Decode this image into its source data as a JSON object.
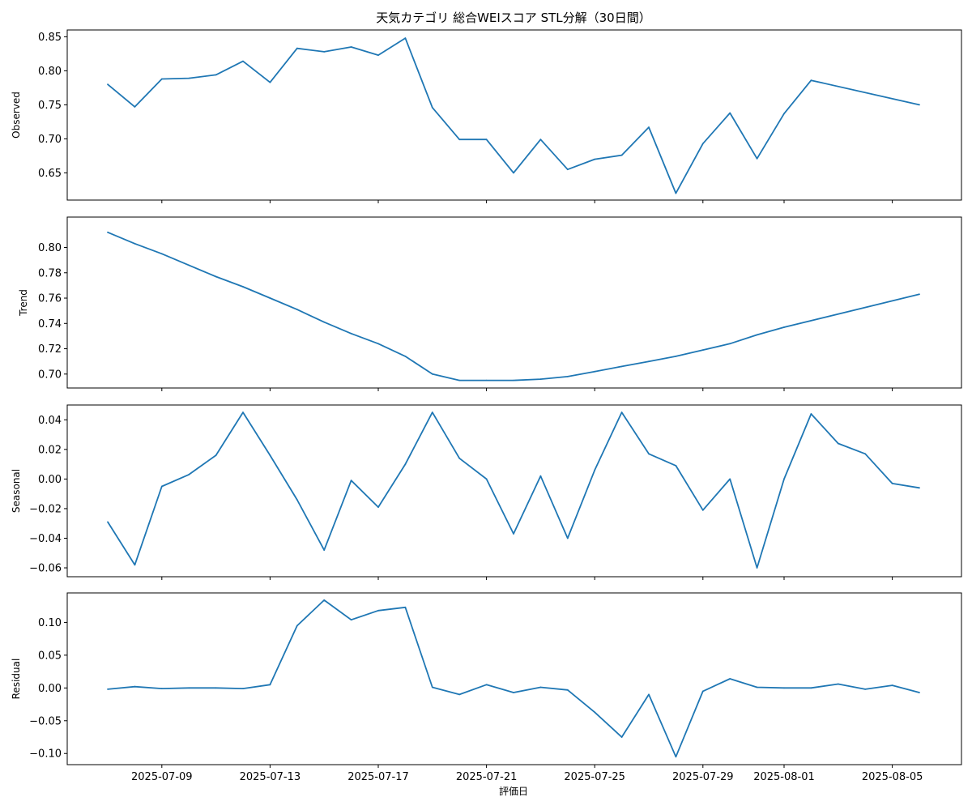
{
  "title": "天気カテゴリ 総合WEIスコア STL分解（30日間）",
  "xlabel": "評価日",
  "chart_data": [
    {
      "type": "line",
      "ylabel": "Observed",
      "ylim": [
        0.61,
        0.86
      ],
      "yticks": [
        "0.65",
        "0.70",
        "0.75",
        "0.80",
        "0.85"
      ],
      "x": [
        "2025-07-07",
        "2025-07-08",
        "2025-07-09",
        "2025-07-10",
        "2025-07-11",
        "2025-07-12",
        "2025-07-13",
        "2025-07-14",
        "2025-07-15",
        "2025-07-16",
        "2025-07-17",
        "2025-07-18",
        "2025-07-19",
        "2025-07-20",
        "2025-07-21",
        "2025-07-22",
        "2025-07-23",
        "2025-07-24",
        "2025-07-25",
        "2025-07-26",
        "2025-07-27",
        "2025-07-28",
        "2025-07-29",
        "2025-07-30",
        "2025-07-31",
        "2025-08-01",
        "2025-08-02",
        "2025-08-06"
      ],
      "values": [
        0.78,
        0.747,
        0.788,
        0.789,
        0.794,
        0.814,
        0.783,
        0.833,
        0.828,
        0.835,
        0.823,
        0.848,
        0.746,
        0.699,
        0.699,
        0.65,
        0.699,
        0.655,
        0.67,
        0.676,
        0.717,
        0.62,
        0.693,
        0.738,
        0.671,
        0.737,
        0.786,
        0.75
      ]
    },
    {
      "type": "line",
      "ylabel": "Trend",
      "ylim": [
        0.689,
        0.824
      ],
      "yticks": [
        "0.70",
        "0.72",
        "0.74",
        "0.76",
        "0.78",
        "0.80"
      ],
      "x": [
        "2025-07-07",
        "2025-07-08",
        "2025-07-09",
        "2025-07-10",
        "2025-07-11",
        "2025-07-12",
        "2025-07-13",
        "2025-07-14",
        "2025-07-15",
        "2025-07-16",
        "2025-07-17",
        "2025-07-18",
        "2025-07-19",
        "2025-07-20",
        "2025-07-21",
        "2025-07-22",
        "2025-07-23",
        "2025-07-24",
        "2025-07-25",
        "2025-07-26",
        "2025-07-27",
        "2025-07-28",
        "2025-07-29",
        "2025-07-30",
        "2025-07-31",
        "2025-08-01",
        "2025-08-06"
      ],
      "values": [
        0.812,
        0.803,
        0.795,
        0.786,
        0.777,
        0.769,
        0.76,
        0.751,
        0.741,
        0.732,
        0.724,
        0.714,
        0.7,
        0.695,
        0.695,
        0.695,
        0.696,
        0.698,
        0.702,
        0.706,
        0.71,
        0.714,
        0.719,
        0.724,
        0.731,
        0.737,
        0.763
      ]
    },
    {
      "type": "line",
      "ylabel": "Seasonal",
      "ylim": [
        -0.066,
        0.05
      ],
      "yticks": [
        "−0.06",
        "−0.04",
        "−0.02",
        "0.00",
        "0.02",
        "0.04"
      ],
      "x": [
        "2025-07-07",
        "2025-07-08",
        "2025-07-09",
        "2025-07-10",
        "2025-07-11",
        "2025-07-12",
        "2025-07-13",
        "2025-07-14",
        "2025-07-15",
        "2025-07-16",
        "2025-07-17",
        "2025-07-18",
        "2025-07-19",
        "2025-07-20",
        "2025-07-21",
        "2025-07-22",
        "2025-07-23",
        "2025-07-24",
        "2025-07-25",
        "2025-07-26",
        "2025-07-27",
        "2025-07-28",
        "2025-07-29",
        "2025-07-30",
        "2025-07-31",
        "2025-08-01",
        "2025-08-02",
        "2025-08-03",
        "2025-08-04",
        "2025-08-05",
        "2025-08-06"
      ],
      "values": [
        -0.029,
        -0.058,
        -0.005,
        0.003,
        0.016,
        0.045,
        0.016,
        -0.014,
        -0.048,
        -0.001,
        -0.019,
        0.01,
        0.045,
        0.014,
        0.0,
        -0.037,
        0.002,
        -0.04,
        0.006,
        0.045,
        0.017,
        0.009,
        -0.021,
        0.0,
        -0.06,
        0.0,
        0.044,
        0.024,
        0.017,
        -0.003,
        -0.006
      ]
    },
    {
      "type": "line",
      "ylabel": "Residual",
      "ylim": [
        -0.117,
        0.145
      ],
      "yticks": [
        "−0.10",
        "−0.05",
        "0.00",
        "0.05",
        "0.10"
      ],
      "x": [
        "2025-07-07",
        "2025-07-08",
        "2025-07-09",
        "2025-07-10",
        "2025-07-11",
        "2025-07-12",
        "2025-07-13",
        "2025-07-14",
        "2025-07-15",
        "2025-07-16",
        "2025-07-17",
        "2025-07-18",
        "2025-07-19",
        "2025-07-20",
        "2025-07-21",
        "2025-07-22",
        "2025-07-23",
        "2025-07-24",
        "2025-07-25",
        "2025-07-26",
        "2025-07-27",
        "2025-07-28",
        "2025-07-29",
        "2025-07-30",
        "2025-07-31",
        "2025-08-01",
        "2025-08-02",
        "2025-08-03",
        "2025-08-04",
        "2025-08-05",
        "2025-08-06"
      ],
      "values": [
        -0.002,
        0.002,
        -0.001,
        0.0,
        0.0,
        -0.001,
        0.005,
        0.095,
        0.134,
        0.104,
        0.118,
        0.123,
        0.001,
        -0.01,
        0.005,
        -0.007,
        0.001,
        -0.003,
        -0.037,
        -0.075,
        -0.01,
        -0.105,
        -0.005,
        0.014,
        0.001,
        0.0,
        0.0,
        0.006,
        -0.002,
        0.004,
        -0.007
      ]
    }
  ],
  "xticks": [
    "2025-07-09",
    "2025-07-13",
    "2025-07-17",
    "2025-07-21",
    "2025-07-25",
    "2025-07-29",
    "2025-08-01",
    "2025-08-05"
  ],
  "line_color": "#1f77b4"
}
